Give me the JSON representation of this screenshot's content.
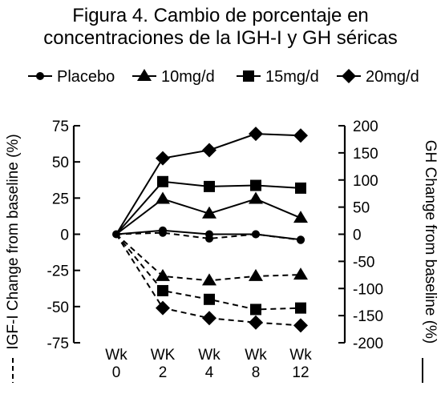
{
  "title_line1": "Figura 4. Cambio de porcentaje en",
  "title_line2": "concentraciones de la IGH-I y GH séricas",
  "chart_data": {
    "type": "line",
    "categories": [
      [
        "Wk",
        "0"
      ],
      [
        "WK",
        "2"
      ],
      [
        "Wk",
        "4"
      ],
      [
        "Wk",
        "8"
      ],
      [
        "Wk",
        "12"
      ]
    ],
    "y_left": {
      "label": "IGF-I Change from baseline (%)",
      "range": [
        -75,
        75
      ],
      "ticks": [
        "75",
        "50",
        "25",
        "0",
        "-25",
        "-50",
        "-75"
      ],
      "line_style": "dashed"
    },
    "y_right": {
      "label": "GH Change from baseline (%)",
      "range": [
        -200,
        200
      ],
      "ticks": [
        "200",
        "150",
        "100",
        "50",
        "0",
        "-50",
        "-100",
        "-150",
        "-200"
      ],
      "line_style": "solid"
    },
    "legend_position": "top",
    "series": [
      {
        "name": "Placebo",
        "marker": "circle",
        "gh": [
          0,
          7,
          0,
          0,
          -10
        ],
        "igf": [
          0,
          1,
          -3,
          0,
          -4
        ]
      },
      {
        "name": "10mg/d",
        "marker": "triangle",
        "gh": [
          0,
          65,
          38,
          65,
          30
        ],
        "igf": [
          0,
          -29,
          -32,
          -29,
          -28
        ]
      },
      {
        "name": "15mg/d",
        "marker": "square",
        "gh": [
          0,
          97,
          88,
          90,
          85
        ],
        "igf": [
          0,
          -39,
          -45,
          -52,
          -51
        ]
      },
      {
        "name": "20mg/d",
        "marker": "diamond",
        "gh": [
          0,
          140,
          155,
          185,
          182
        ],
        "igf": [
          0,
          -51,
          -58,
          -61,
          -63
        ]
      }
    ]
  }
}
